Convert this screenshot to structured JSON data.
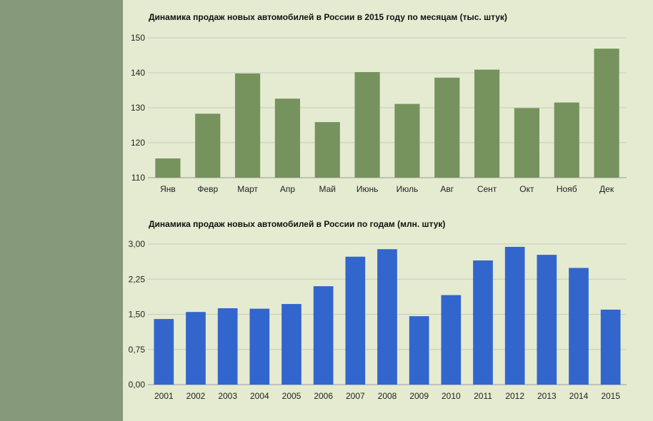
{
  "chart_data": [
    {
      "type": "bar",
      "title": "Динамика продаж новых автомобилей в России в 2015 году по месяцам (тыс. штук)",
      "categories": [
        "Янв",
        "Февр",
        "Март",
        "Апр",
        "Май",
        "Июнь",
        "Июль",
        "Авг",
        "Сент",
        "Окт",
        "Нояб",
        "Дек"
      ],
      "values": [
        115.5,
        128.3,
        139.8,
        132.6,
        125.9,
        140.2,
        131.1,
        138.6,
        140.9,
        129.9,
        131.5,
        146.9
      ],
      "yticks": [
        "110",
        "120",
        "130",
        "140",
        "150"
      ],
      "ylim": [
        110,
        150
      ],
      "color": "#76935e",
      "grid": true
    },
    {
      "type": "bar",
      "title": "Динамика продаж новых автомобилей в России по годам (млн. штук)",
      "categories": [
        "2001",
        "2002",
        "2003",
        "2004",
        "2005",
        "2006",
        "2007",
        "2008",
        "2009",
        "2010",
        "2011",
        "2012",
        "2013",
        "2014",
        "2015"
      ],
      "values": [
        1.4,
        1.55,
        1.63,
        1.62,
        1.72,
        2.1,
        2.73,
        2.89,
        1.46,
        1.91,
        2.65,
        2.94,
        2.77,
        2.49,
        1.6
      ],
      "yticks": [
        "0,00",
        "0,75",
        "1,50",
        "2,25",
        "3,00"
      ],
      "ylim": [
        0,
        3
      ],
      "color": "#3366cc",
      "grid": true
    }
  ]
}
